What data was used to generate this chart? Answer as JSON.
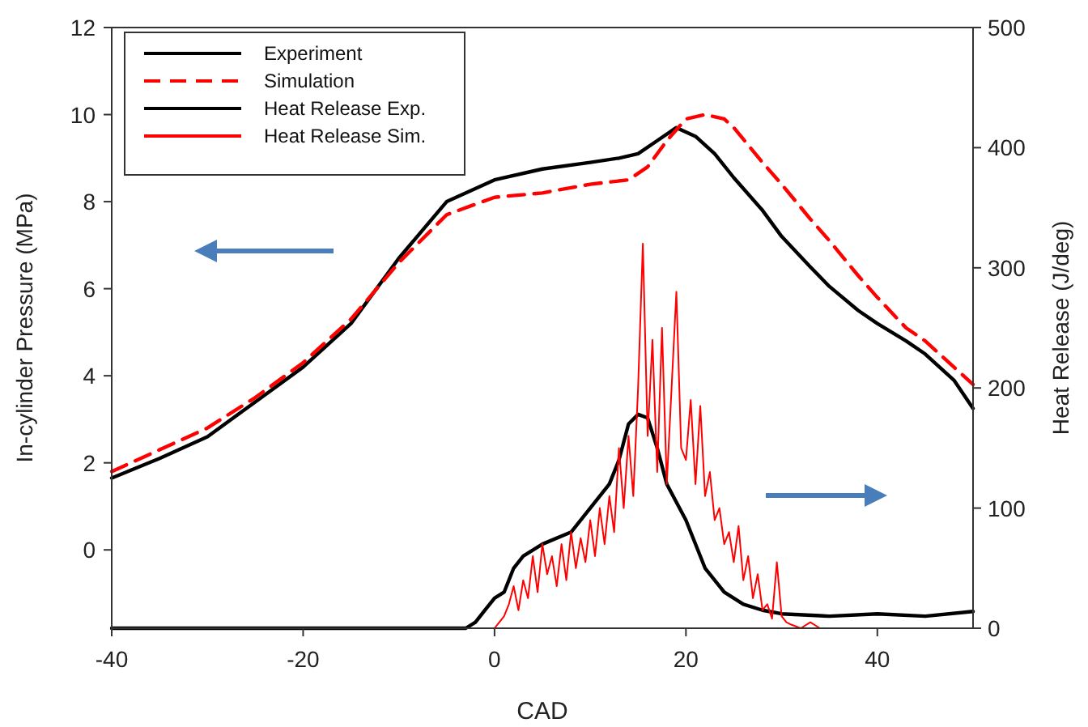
{
  "chart_data": {
    "type": "line",
    "xlabel": "CAD",
    "ylabel": "In-cylinder Pressure (MPa)",
    "y2label": "Heat Release (J/deg)",
    "xlim": [
      -40,
      50
    ],
    "xticks": [
      -40,
      -20,
      0,
      20,
      40
    ],
    "ylim": [
      -1.8,
      12
    ],
    "yticks": [
      0,
      2,
      4,
      6,
      8,
      10,
      12
    ],
    "y2lim": [
      0,
      500
    ],
    "y2ticks": [
      0,
      100,
      200,
      300,
      400,
      500
    ],
    "legend": "top left",
    "grid": false,
    "series": [
      {
        "name": "Experiment",
        "color": "#000000",
        "line_style": "solid",
        "x": [
          -40,
          -35,
          -30,
          -25,
          -20,
          -15,
          -10,
          -5,
          0,
          5,
          10,
          13,
          15,
          17,
          19,
          21,
          23,
          25,
          28,
          30,
          33,
          35,
          38,
          40,
          43,
          45,
          48,
          50
        ],
        "values": [
          1.65,
          2.1,
          2.6,
          3.4,
          4.2,
          5.2,
          6.7,
          8.0,
          8.5,
          8.75,
          8.9,
          9.0,
          9.1,
          9.4,
          9.7,
          9.5,
          9.1,
          8.55,
          7.8,
          7.2,
          6.5,
          6.05,
          5.5,
          5.2,
          4.8,
          4.5,
          3.9,
          3.25
        ]
      },
      {
        "name": "Simulation",
        "color": "#ff0000",
        "line_style": "dashed",
        "x": [
          -40,
          -35,
          -30,
          -25,
          -20,
          -15,
          -10,
          -5,
          0,
          5,
          10,
          14,
          16,
          18,
          20,
          22,
          24,
          25,
          28,
          30,
          33,
          35,
          38,
          40,
          43,
          45,
          48,
          50
        ],
        "values": [
          1.8,
          2.3,
          2.8,
          3.5,
          4.3,
          5.3,
          6.6,
          7.7,
          8.1,
          8.2,
          8.4,
          8.5,
          8.8,
          9.4,
          9.9,
          10.0,
          9.9,
          9.7,
          8.9,
          8.4,
          7.6,
          7.1,
          6.3,
          5.8,
          5.1,
          4.8,
          4.2,
          3.8
        ]
      },
      {
        "name": "Heat Release Exp.",
        "color": "#000000",
        "line_style": "solid",
        "axis": "y2",
        "x": [
          -40,
          -3,
          -2,
          -1,
          0,
          1,
          2,
          3,
          5,
          8,
          10,
          12,
          13,
          14,
          15,
          16,
          17,
          18,
          20,
          22,
          24,
          26,
          28,
          30,
          35,
          40,
          45,
          50
        ],
        "values": [
          0,
          0,
          5,
          15,
          25,
          30,
          50,
          60,
          70,
          80,
          100,
          120,
          140,
          170,
          178,
          175,
          150,
          120,
          90,
          50,
          30,
          20,
          15,
          12,
          10,
          12,
          10,
          14
        ]
      },
      {
        "name": "Heat Release Sim.",
        "color": "#ff0000",
        "line_style": "solid",
        "axis": "y2",
        "x": [
          -40,
          0,
          0.5,
          1,
          1.5,
          2,
          2.5,
          3,
          3.5,
          4,
          4.5,
          5,
          5.5,
          6,
          6.5,
          7,
          7.5,
          8,
          8.5,
          9,
          9.5,
          10,
          10.5,
          11,
          11.5,
          12,
          12.5,
          13,
          13.5,
          14,
          14.5,
          15,
          15.5,
          16,
          16.5,
          17,
          17.5,
          18,
          18.5,
          19,
          19.5,
          20,
          20.5,
          21,
          21.5,
          22,
          22.5,
          23,
          23.5,
          24,
          24.5,
          25,
          25.5,
          26,
          26.5,
          27,
          27.5,
          28,
          28.5,
          29,
          29.5,
          30,
          30.5,
          31,
          32,
          33,
          34,
          50
        ],
        "values": [
          0,
          0,
          5,
          10,
          20,
          35,
          15,
          40,
          25,
          60,
          30,
          70,
          45,
          60,
          35,
          70,
          40,
          80,
          50,
          75,
          55,
          90,
          60,
          100,
          70,
          110,
          80,
          150,
          100,
          160,
          110,
          200,
          320,
          160,
          240,
          130,
          250,
          120,
          200,
          280,
          150,
          140,
          190,
          120,
          185,
          110,
          130,
          90,
          100,
          70,
          80,
          55,
          85,
          40,
          60,
          25,
          45,
          15,
          20,
          8,
          55,
          10,
          5,
          3,
          0,
          5,
          0,
          0
        ]
      }
    ]
  }
}
